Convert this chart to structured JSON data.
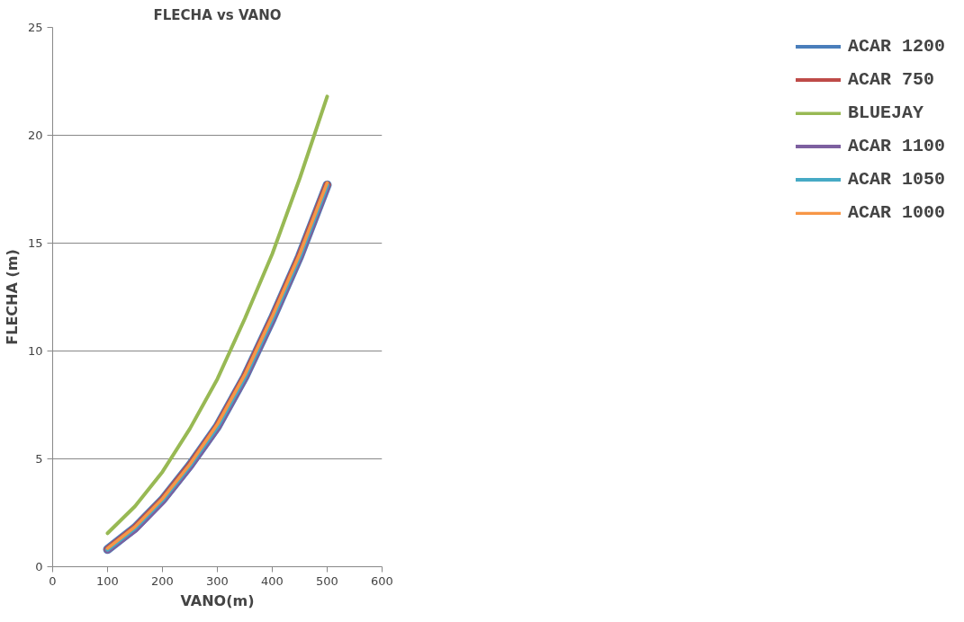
{
  "chart_data": {
    "type": "line",
    "title": "FLECHA vs VANO",
    "xlabel": "VANO(m)",
    "ylabel": "FLECHA (m)",
    "x": [
      100,
      150,
      200,
      250,
      300,
      350,
      400,
      450,
      500
    ],
    "series": [
      {
        "name": "ACAR 1200",
        "color": "#4a7ebb",
        "values": [
          0.8,
          1.8,
          3.1,
          4.7,
          6.5,
          8.8,
          11.5,
          14.4,
          17.7
        ]
      },
      {
        "name": "ACAR 750",
        "color": "#be4b48",
        "values": [
          0.8,
          1.8,
          3.1,
          4.7,
          6.5,
          8.8,
          11.5,
          14.4,
          17.7
        ]
      },
      {
        "name": "BLUEJAY",
        "color": "#98b954",
        "values": [
          1.55,
          2.8,
          4.4,
          6.4,
          8.7,
          11.5,
          14.5,
          18.0,
          21.8
        ]
      },
      {
        "name": "ACAR 1100",
        "color": "#7d60a0",
        "values": [
          0.75,
          1.7,
          3.0,
          4.6,
          6.4,
          8.7,
          11.4,
          14.3,
          17.6
        ]
      },
      {
        "name": "ACAR 1050",
        "color": "#46aac5",
        "values": [
          0.8,
          1.8,
          3.1,
          4.7,
          6.5,
          8.8,
          11.5,
          14.4,
          17.7
        ]
      },
      {
        "name": "ACAR 1000",
        "color": "#f79646",
        "values": [
          0.85,
          1.85,
          3.15,
          4.75,
          6.6,
          8.9,
          11.6,
          14.5,
          17.8
        ]
      }
    ],
    "xlim": [
      0,
      600
    ],
    "xticks": [
      0,
      100,
      200,
      300,
      400,
      500,
      600
    ],
    "ylim": [
      0,
      25
    ],
    "yticks": [
      0,
      5,
      10,
      15,
      20,
      25
    ],
    "grid": "y",
    "legend": "right",
    "marker": "none",
    "line_style": "solid"
  }
}
